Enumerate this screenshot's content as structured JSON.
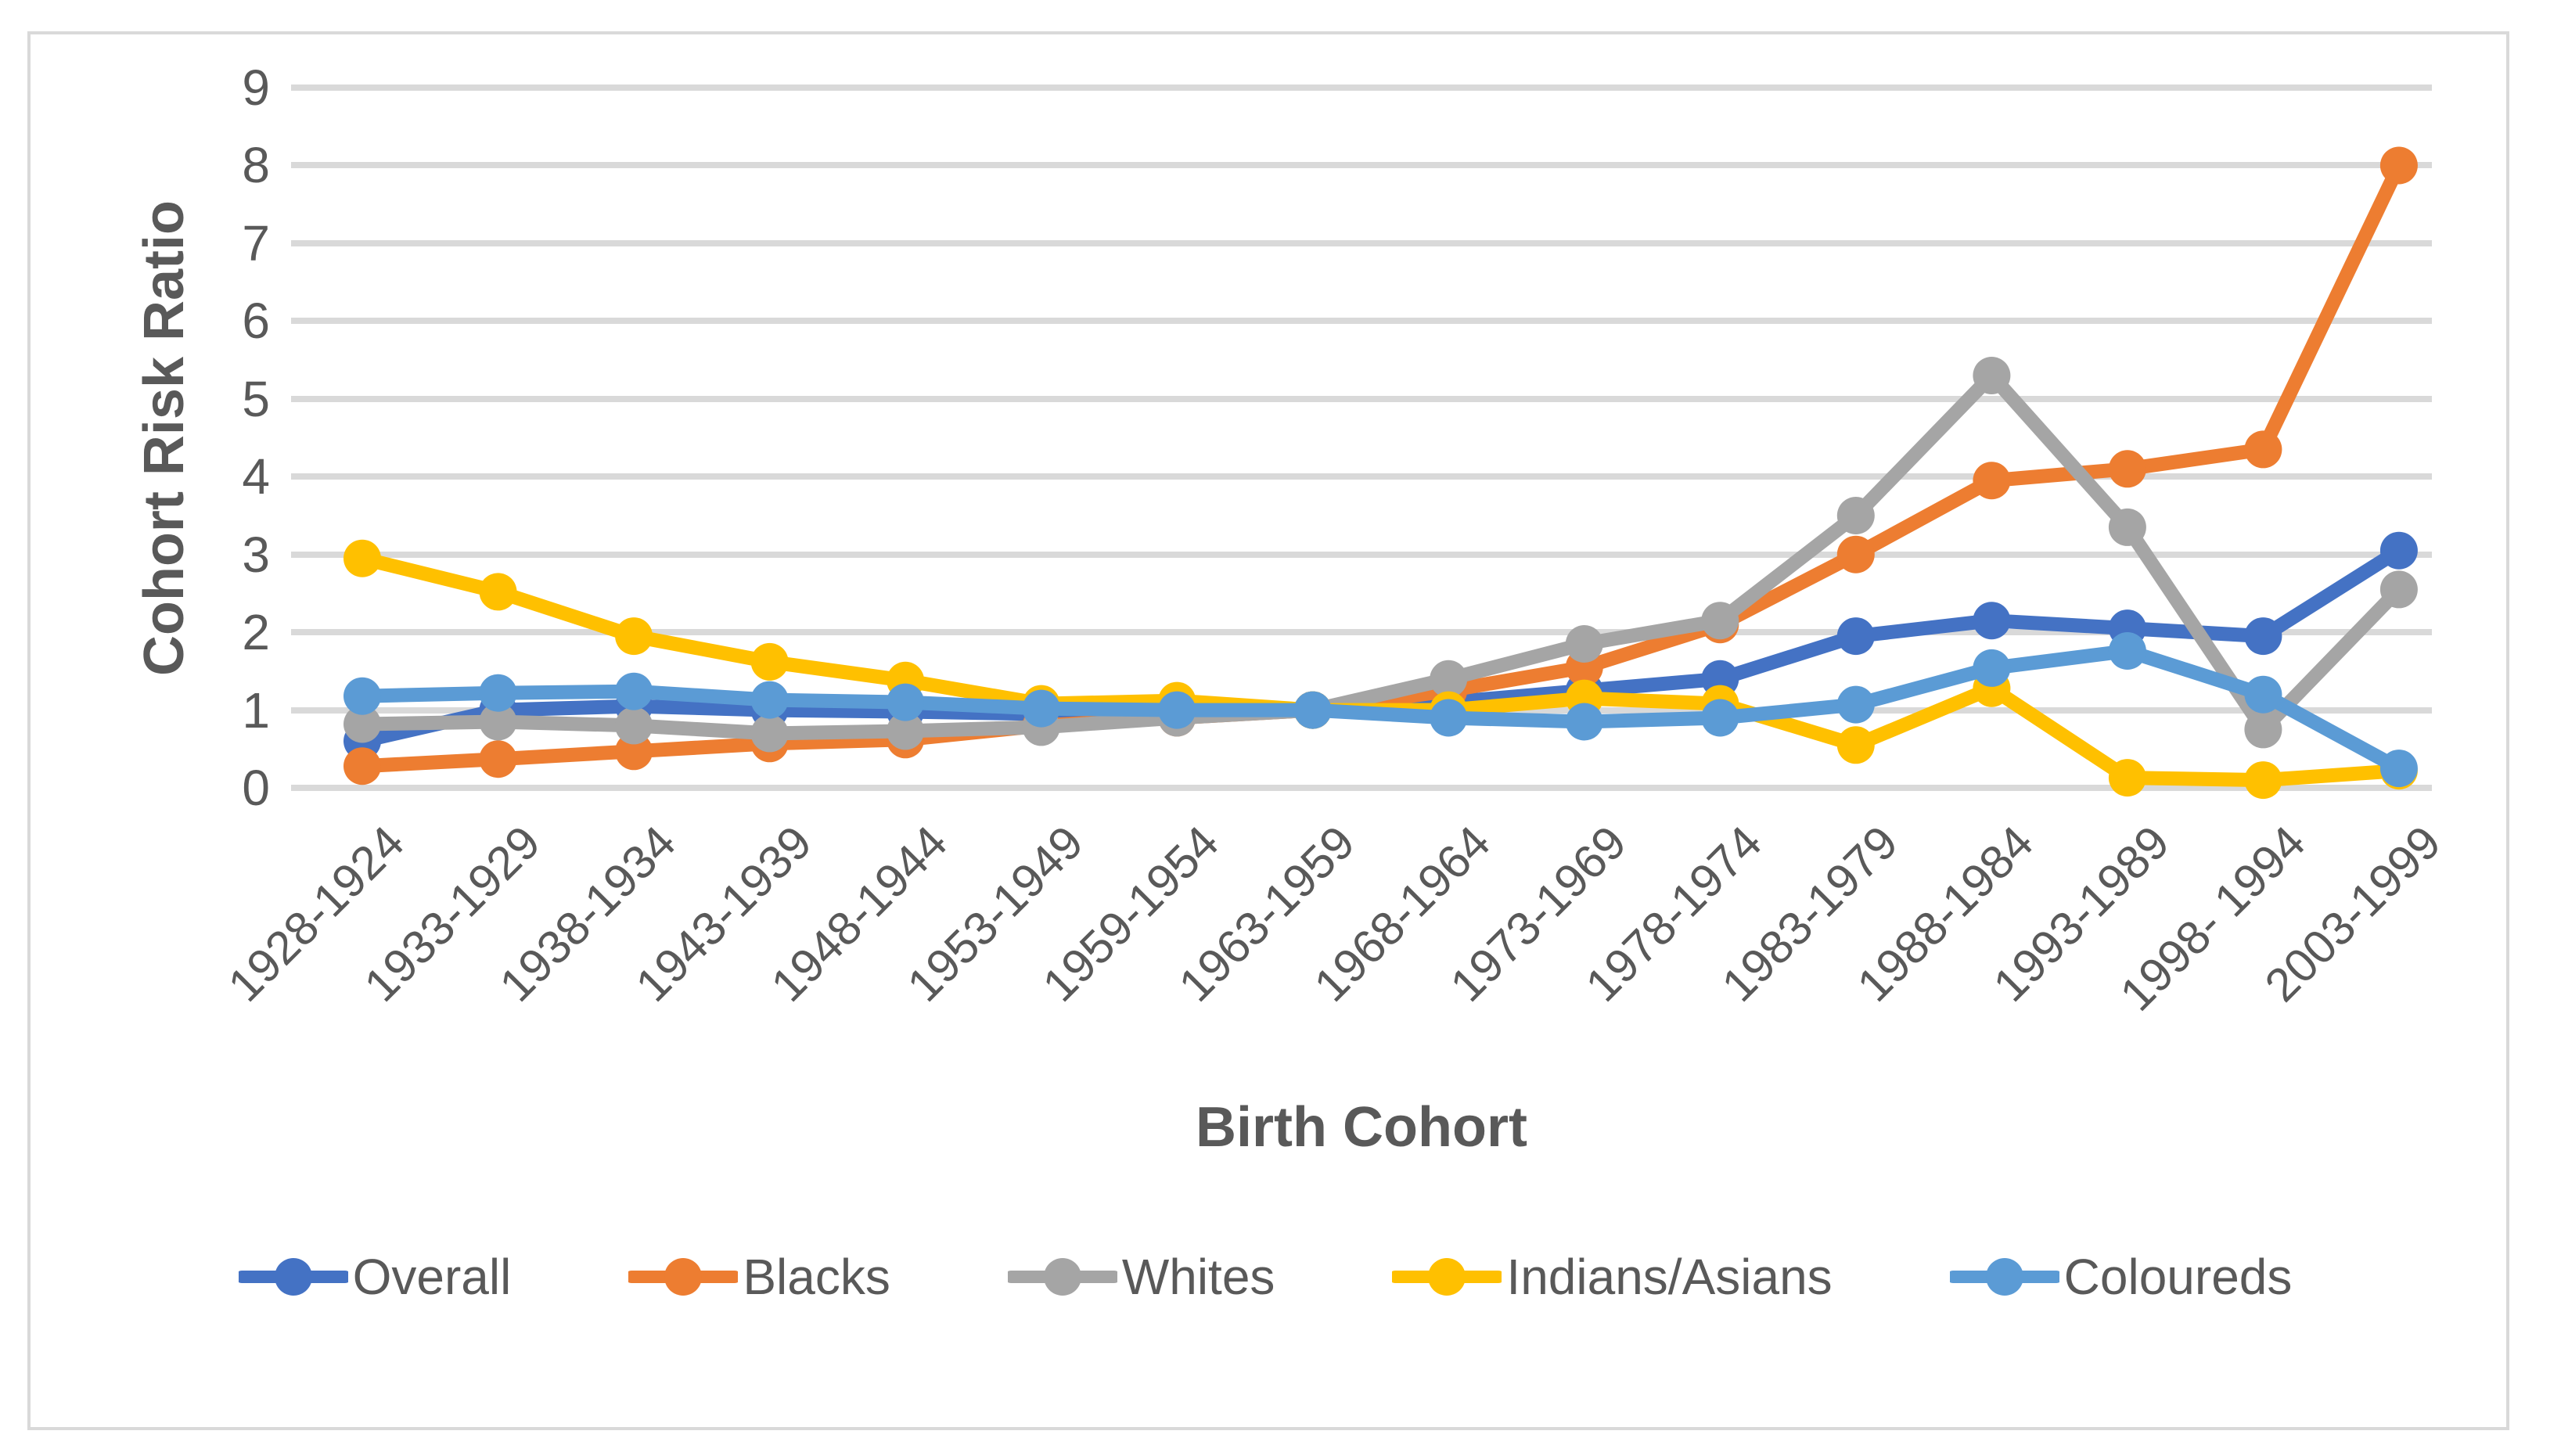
{
  "figure": {
    "y_axis_title": "Cohort Risk Ratio",
    "x_axis_title": "Birth Cohort"
  },
  "chart_data": {
    "type": "line",
    "title": "",
    "xlabel": "Birth Cohort",
    "ylabel": "Cohort Risk Ratio",
    "ylim": [
      0,
      9
    ],
    "y_ticks": [
      0,
      1,
      2,
      3,
      4,
      5,
      6,
      7,
      8,
      9
    ],
    "grid": true,
    "legend_position": "bottom",
    "categories": [
      "1928-1924",
      "1933-1929",
      "1938-1934",
      "1943-1939",
      "1948-1944",
      "1953-1949",
      "1959-1954",
      "1963-1959",
      "1968-1964",
      "1973-1969",
      "1978-1974",
      "1983-1979",
      "1988-1984",
      "1993-1989",
      "1998- 1994",
      "2003-1999"
    ],
    "series": [
      {
        "name": "Overall",
        "color": "#4472C4",
        "values": [
          0.6,
          1.0,
          1.05,
          1.0,
          0.98,
          0.95,
          1.0,
          1.0,
          1.1,
          1.25,
          1.4,
          1.95,
          2.15,
          2.05,
          1.95,
          3.05
        ]
      },
      {
        "name": "Blacks",
        "color": "#ED7D31",
        "values": [
          0.28,
          0.37,
          0.47,
          0.57,
          0.62,
          0.8,
          0.9,
          1.0,
          1.25,
          1.55,
          2.1,
          3.0,
          3.95,
          4.1,
          4.35,
          8.0
        ]
      },
      {
        "name": "Whites",
        "color": "#A5A5A5",
        "values": [
          0.82,
          0.85,
          0.8,
          0.7,
          0.73,
          0.78,
          0.9,
          1.0,
          1.4,
          1.85,
          2.15,
          3.5,
          5.3,
          3.35,
          0.75,
          2.55
        ]
      },
      {
        "name": "Indians/Asians",
        "color": "#FFC000",
        "values": [
          2.95,
          2.52,
          1.95,
          1.62,
          1.38,
          1.08,
          1.12,
          1.0,
          1.0,
          1.15,
          1.08,
          0.55,
          1.28,
          0.13,
          0.1,
          0.22
        ]
      },
      {
        "name": "Coloureds",
        "color": "#5B9BD5",
        "values": [
          1.18,
          1.22,
          1.24,
          1.13,
          1.1,
          1.02,
          1.0,
          1.0,
          0.9,
          0.85,
          0.9,
          1.07,
          1.54,
          1.76,
          1.2,
          0.25
        ]
      }
    ],
    "colors": {
      "grid": "#D9D9D9",
      "text": "#595959",
      "frame_border": "#D9D9D9"
    }
  }
}
